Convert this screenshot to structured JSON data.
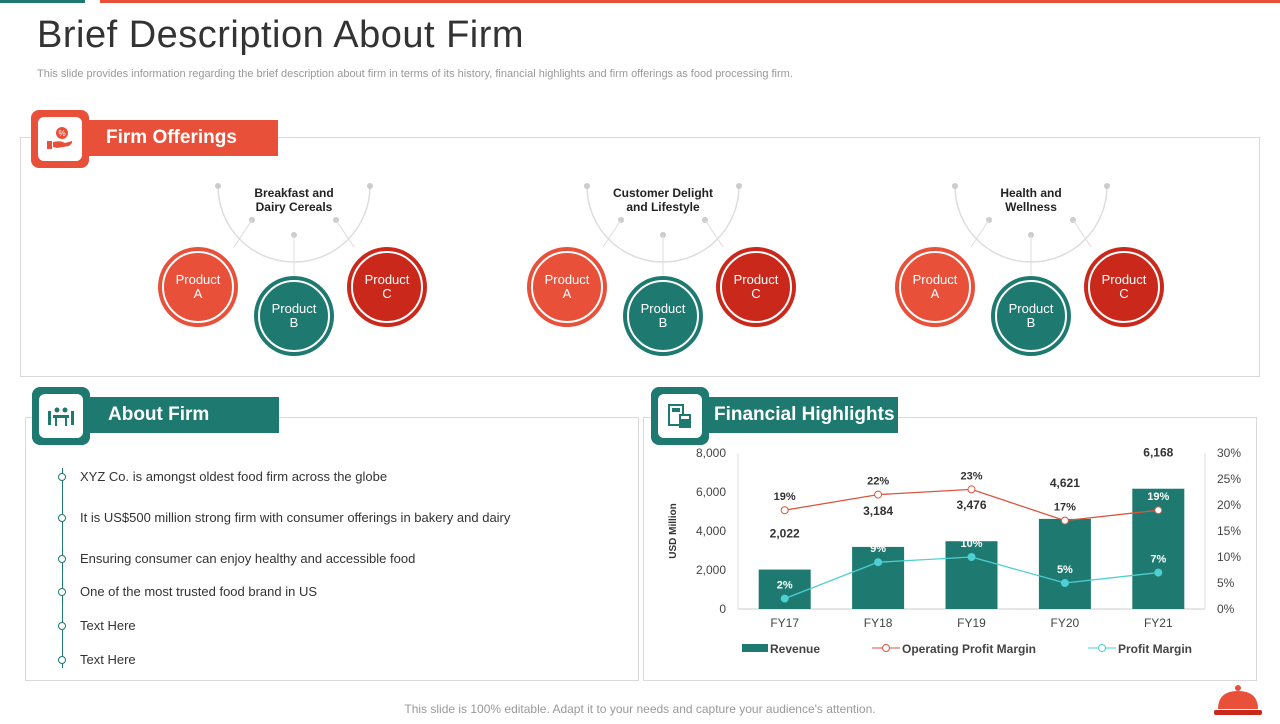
{
  "header": {
    "title": "Brief Description About Firm",
    "subtitle": "This slide provides information regarding the brief description about firm in terms of its history, financial highlights and firm offerings as food processing firm."
  },
  "offerings": {
    "title": "Firm Offerings",
    "groups": [
      {
        "category_line1": "Breakfast and",
        "category_line2": "Dairy Cereals",
        "products": [
          {
            "l1": "Product",
            "l2": "A"
          },
          {
            "l1": "Product",
            "l2": "B"
          },
          {
            "l1": "Product",
            "l2": "C"
          }
        ]
      },
      {
        "category_line1": "Customer Delight",
        "category_line2": "and Lifestyle",
        "products": [
          {
            "l1": "Product",
            "l2": "A"
          },
          {
            "l1": "Product",
            "l2": "B"
          },
          {
            "l1": "Product",
            "l2": "C"
          }
        ]
      },
      {
        "category_line1": "Health and",
        "category_line2": "Wellness",
        "products": [
          {
            "l1": "Product",
            "l2": "A"
          },
          {
            "l1": "Product",
            "l2": "B"
          },
          {
            "l1": "Product",
            "l2": "C"
          }
        ]
      }
    ]
  },
  "about": {
    "title": "About Firm",
    "items": [
      "XYZ Co. is amongst oldest food firm across the globe",
      "It is US$500  million strong firm with consumer offerings  in bakery and dairy",
      "Ensuring consumer can enjoy healthy and accessible food",
      "One of the most trusted food brand in US",
      "Text Here",
      "Text Here"
    ]
  },
  "financial": {
    "title": "Financial Highlights"
  },
  "chart_data": {
    "type": "bar",
    "categories": [
      "FY17",
      "FY18",
      "FY19",
      "FY20",
      "FY21"
    ],
    "series": [
      {
        "name": "Revenue",
        "type": "bar",
        "axis": "left",
        "values": [
          2022,
          3184,
          3476,
          4621,
          6168
        ],
        "labels": [
          "2,022",
          "3,184",
          "3,476",
          "4,621",
          "6,168"
        ]
      },
      {
        "name": "Operating Profit Margin",
        "type": "line",
        "axis": "right",
        "values": [
          19,
          22,
          23,
          17,
          19
        ],
        "labels": [
          "19%",
          "22%",
          "23%",
          "17%",
          "19%"
        ]
      },
      {
        "name": "Profit Margin",
        "type": "line",
        "axis": "right",
        "values": [
          2,
          9,
          10,
          5,
          7
        ],
        "labels": [
          "2%",
          "9%",
          "10%",
          "5%",
          "7%"
        ]
      }
    ],
    "ylabel": "USD Million",
    "ylim": [
      0,
      8000
    ],
    "yticks": [
      "0",
      "2,000",
      "4,000",
      "6,000",
      "8,000"
    ],
    "y2lim": [
      0,
      30
    ],
    "y2ticks": [
      "0%",
      "5%",
      "10%",
      "15%",
      "20%",
      "25%",
      "30%"
    ],
    "legend": "bottom"
  },
  "colors": {
    "teal": "#1e7a70",
    "orange": "#e8503a",
    "red": "#c9281b",
    "cyan": "#4ecfd3"
  },
  "footer": "This slide is 100% editable. Adapt it to your needs and capture your audience's attention."
}
